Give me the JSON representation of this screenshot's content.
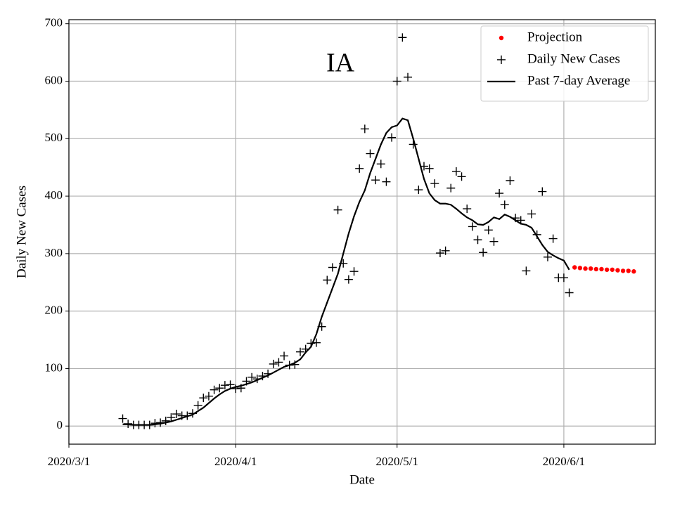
{
  "chart_data": {
    "type": "line",
    "title": "IA",
    "xlabel": "Date",
    "ylabel": "Daily New Cases",
    "xlim": [
      "2020-03-01",
      "2020-06-18"
    ],
    "xticks": [
      {
        "value": "2020-03-01",
        "label": "2020/3/1"
      },
      {
        "value": "2020-04-01",
        "label": "2020/4/1"
      },
      {
        "value": "2020-05-01",
        "label": "2020/5/1"
      },
      {
        "value": "2020-06-01",
        "label": "2020/6/1"
      }
    ],
    "ylim": [
      -31.5,
      707
    ],
    "yticks": [
      0,
      100,
      200,
      300,
      400,
      500,
      600,
      700
    ],
    "grid": true,
    "legend": "upper right",
    "series": [
      {
        "name": "Projection",
        "style": "dot",
        "color": "#ff0000",
        "x": [
          "2020-06-03",
          "2020-06-04",
          "2020-06-05",
          "2020-06-06",
          "2020-06-07",
          "2020-06-08",
          "2020-06-09",
          "2020-06-10",
          "2020-06-11",
          "2020-06-12",
          "2020-06-13",
          "2020-06-14"
        ],
        "values": [
          276,
          275,
          274,
          274,
          273,
          273,
          272,
          272,
          271,
          270,
          270,
          269
        ]
      },
      {
        "name": "Daily New Cases",
        "style": "plus",
        "color": "#000000",
        "x": [
          "2020-03-11",
          "2020-03-12",
          "2020-03-13",
          "2020-03-14",
          "2020-03-15",
          "2020-03-16",
          "2020-03-17",
          "2020-03-18",
          "2020-03-19",
          "2020-03-20",
          "2020-03-21",
          "2020-03-22",
          "2020-03-23",
          "2020-03-24",
          "2020-03-25",
          "2020-03-26",
          "2020-03-27",
          "2020-03-28",
          "2020-03-29",
          "2020-03-30",
          "2020-03-31",
          "2020-04-01",
          "2020-04-02",
          "2020-04-03",
          "2020-04-04",
          "2020-04-05",
          "2020-04-06",
          "2020-04-07",
          "2020-04-08",
          "2020-04-09",
          "2020-04-10",
          "2020-04-11",
          "2020-04-12",
          "2020-04-13",
          "2020-04-14",
          "2020-04-15",
          "2020-04-16",
          "2020-04-17",
          "2020-04-18",
          "2020-04-19",
          "2020-04-20",
          "2020-04-21",
          "2020-04-22",
          "2020-04-23",
          "2020-04-24",
          "2020-04-25",
          "2020-04-26",
          "2020-04-27",
          "2020-04-28",
          "2020-04-29",
          "2020-04-30",
          "2020-05-01",
          "2020-05-02",
          "2020-05-03",
          "2020-05-04",
          "2020-05-05",
          "2020-05-06",
          "2020-05-07",
          "2020-05-08",
          "2020-05-09",
          "2020-05-10",
          "2020-05-11",
          "2020-05-12",
          "2020-05-13",
          "2020-05-14",
          "2020-05-15",
          "2020-05-16",
          "2020-05-17",
          "2020-05-18",
          "2020-05-19",
          "2020-05-20",
          "2020-05-21",
          "2020-05-22",
          "2020-05-23",
          "2020-05-24",
          "2020-05-25",
          "2020-05-26",
          "2020-05-27",
          "2020-05-28",
          "2020-05-29",
          "2020-05-30",
          "2020-05-31",
          "2020-06-01",
          "2020-06-02"
        ],
        "values": [
          13,
          4,
          2,
          2,
          2,
          2,
          5,
          6,
          9,
          15,
          21,
          18,
          18,
          22,
          36,
          49,
          52,
          63,
          66,
          71,
          72,
          65,
          66,
          78,
          85,
          82,
          87,
          91,
          108,
          111,
          122,
          106,
          107,
          129,
          134,
          144,
          145,
          173,
          254,
          276,
          376,
          283,
          255,
          269,
          448,
          517,
          474,
          428,
          456,
          425,
          502,
          600,
          676,
          607,
          490,
          411,
          452,
          448,
          422,
          301,
          305,
          414,
          443,
          434,
          378,
          347,
          324,
          302,
          341,
          321,
          405,
          385,
          427,
          362,
          358,
          270,
          369,
          333,
          408,
          294,
          326,
          258,
          258,
          232
        ]
      },
      {
        "name": "Past 7-day Average",
        "style": "line",
        "color": "#000000",
        "x": [
          "2020-03-11",
          "2020-03-12",
          "2020-03-13",
          "2020-03-14",
          "2020-03-15",
          "2020-03-16",
          "2020-03-17",
          "2020-03-18",
          "2020-03-19",
          "2020-03-20",
          "2020-03-21",
          "2020-03-22",
          "2020-03-23",
          "2020-03-24",
          "2020-03-25",
          "2020-03-26",
          "2020-03-27",
          "2020-03-28",
          "2020-03-29",
          "2020-03-30",
          "2020-03-31",
          "2020-04-01",
          "2020-04-02",
          "2020-04-03",
          "2020-04-04",
          "2020-04-05",
          "2020-04-06",
          "2020-04-07",
          "2020-04-08",
          "2020-04-09",
          "2020-04-10",
          "2020-04-11",
          "2020-04-12",
          "2020-04-13",
          "2020-04-14",
          "2020-04-15",
          "2020-04-16",
          "2020-04-17",
          "2020-04-18",
          "2020-04-19",
          "2020-04-20",
          "2020-04-21",
          "2020-04-22",
          "2020-04-23",
          "2020-04-24",
          "2020-04-25",
          "2020-04-26",
          "2020-04-27",
          "2020-04-28",
          "2020-04-29",
          "2020-04-30",
          "2020-05-01",
          "2020-05-02",
          "2020-05-03",
          "2020-05-04",
          "2020-05-05",
          "2020-05-06",
          "2020-05-07",
          "2020-05-08",
          "2020-05-09",
          "2020-05-10",
          "2020-05-11",
          "2020-05-12",
          "2020-05-13",
          "2020-05-14",
          "2020-05-15",
          "2020-05-16",
          "2020-05-17",
          "2020-05-18",
          "2020-05-19",
          "2020-05-20",
          "2020-05-21",
          "2020-05-22",
          "2020-05-23",
          "2020-05-24",
          "2020-05-25",
          "2020-05-26",
          "2020-05-27",
          "2020-05-28",
          "2020-05-29",
          "2020-05-30",
          "2020-05-31",
          "2020-06-01",
          "2020-06-02"
        ],
        "values": [
          3,
          3,
          2,
          2,
          2,
          2,
          3,
          4,
          6,
          8,
          11,
          14,
          17,
          20,
          26,
          32,
          40,
          48,
          55,
          61,
          65,
          68,
          70,
          73,
          76,
          80,
          84,
          88,
          93,
          98,
          103,
          106,
          110,
          116,
          128,
          138,
          160,
          190,
          215,
          240,
          265,
          300,
          335,
          365,
          390,
          410,
          440,
          465,
          490,
          510,
          520,
          523,
          535,
          532,
          500,
          465,
          430,
          405,
          393,
          387,
          387,
          385,
          378,
          370,
          363,
          358,
          351,
          350,
          355,
          363,
          360,
          368,
          364,
          358,
          352,
          350,
          345,
          330,
          315,
          303,
          297,
          292,
          288,
          272
        ]
      }
    ]
  }
}
